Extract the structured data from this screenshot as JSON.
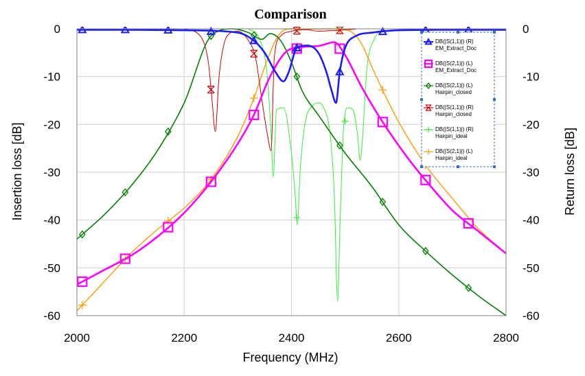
{
  "chart_data": {
    "type": "line",
    "title": "Comparison",
    "xlabel": "Frequency (MHz)",
    "ylabel_left": "Insertion loss [dB]",
    "ylabel_right": "Return loss [dB]",
    "xlim": [
      2000,
      2800
    ],
    "ylim_left": [
      -60,
      0
    ],
    "ylim_right": [
      -60,
      0
    ],
    "x_ticks": [
      "2000",
      "2200",
      "2400",
      "2600",
      "2800"
    ],
    "y_ticks_left": [
      "0",
      "-10",
      "-20",
      "-30",
      "-40",
      "-50",
      "-60"
    ],
    "y_ticks_right": [
      "0",
      "-10",
      "-20",
      "-30",
      "-40",
      "-50",
      "-60"
    ],
    "grid": true,
    "legend_position": "top-right",
    "series": [
      {
        "key": "s11_em",
        "name": "DB(|S(1,1)|) (R)",
        "name2": "EM_Extract_Doc",
        "color": "#1a1aff",
        "marker": "triangle",
        "axis": "right",
        "x": [
          2000,
          2100,
          2200,
          2300,
          2330,
          2350,
          2370,
          2385,
          2395,
          2410,
          2430,
          2450,
          2465,
          2475,
          2483,
          2490,
          2500,
          2520,
          2550,
          2600,
          2700,
          2800
        ],
        "y": [
          -0.2,
          -0.2,
          -0.3,
          -0.8,
          -2.5,
          -5,
          -9,
          -11,
          -9,
          -4,
          -3.5,
          -5,
          -9,
          -13,
          -15.5,
          -9,
          -4,
          -1.5,
          -0.8,
          -0.3,
          -0.2,
          -0.2
        ]
      },
      {
        "key": "s21_em",
        "name": "DB(|S(2,1)|) (L)",
        "name2": "EM_Extract_Doc",
        "color": "#ff00ff",
        "marker": "square",
        "axis": "left",
        "x": [
          2000,
          2050,
          2100,
          2150,
          2200,
          2250,
          2300,
          2330,
          2360,
          2390,
          2420,
          2450,
          2480,
          2500,
          2530,
          2570,
          2620,
          2660,
          2700,
          2750,
          2800
        ],
        "y": [
          -53.5,
          -50.5,
          -47.5,
          -43.5,
          -38.5,
          -32,
          -24,
          -18,
          -10,
          -4.8,
          -3.8,
          -3.6,
          -2.8,
          -5.5,
          -12,
          -19.5,
          -27.5,
          -33,
          -38,
          -42.5,
          -47
        ]
      },
      {
        "key": "s21_hc",
        "name": "DB(|S(2,1)|) (L)",
        "name2": "Hairpin_closed",
        "color": "#008000",
        "marker": "diamond",
        "axis": "left",
        "x": [
          2000,
          2050,
          2100,
          2150,
          2200,
          2250,
          2290,
          2320,
          2345,
          2360,
          2380,
          2400,
          2420,
          2450,
          2500,
          2550,
          2600,
          2650,
          2700,
          2750,
          2800
        ],
        "y": [
          -44,
          -39,
          -33,
          -25.5,
          -15.5,
          -1.5,
          0,
          -0.8,
          -2.2,
          -1,
          -2.5,
          -7,
          -13,
          -18,
          -26,
          -33,
          -41,
          -46.5,
          -51.5,
          -56,
          -60
        ]
      },
      {
        "key": "s11_hc",
        "name": "DB(|S(1,1)|) (R)",
        "name2": "Hairpin_closed",
        "color": "#cc0000",
        "marker": "x",
        "axis": "right",
        "x": [
          2200,
          2230,
          2245,
          2252,
          2258,
          2265,
          2280,
          2300,
          2320,
          2333,
          2345,
          2355,
          2362,
          2368,
          2380,
          2400,
          2430,
          2450,
          2470,
          2490,
          2520
        ],
        "y": [
          -0.05,
          -1.5,
          -7,
          -15,
          -21.5,
          -10,
          -1.5,
          -0.5,
          -2.5,
          -6,
          -15,
          -22,
          -25.5,
          -6,
          -1.5,
          -0.5,
          -0.2,
          -0.5,
          -0.4,
          -0.3,
          -0.05
        ]
      },
      {
        "key": "s11_hi",
        "name": "DB(|S(1,1)|) (R)",
        "name2": "Hairpin_ideal",
        "color": "#33ee33",
        "marker": "plus",
        "axis": "right",
        "x": [
          2320,
          2340,
          2355,
          2362,
          2366,
          2372,
          2385,
          2400,
          2407,
          2411,
          2416,
          2425,
          2440,
          2450,
          2460,
          2472,
          2480,
          2486,
          2491,
          2497,
          2505,
          2515,
          2523,
          2528,
          2533,
          2540,
          2555,
          2570
        ],
        "y": [
          -0.05,
          -2,
          -10,
          -22,
          -31,
          -17,
          -16.5,
          -26,
          -35,
          -41,
          -30,
          -20,
          -16,
          -15.5,
          -16.5,
          -22,
          -35,
          -57,
          -39,
          -21,
          -16.5,
          -17,
          -22,
          -27.5,
          -22,
          -9,
          -2,
          -0.05
        ]
      },
      {
        "key": "s21_hi",
        "name": "DB(|S(2,1)|) (L)",
        "name2": "Hairpin_ideal",
        "color": "#ff9900",
        "marker": "plus",
        "axis": "left",
        "x": [
          2000,
          2050,
          2100,
          2150,
          2200,
          2250,
          2300,
          2330,
          2350,
          2370,
          2385,
          2400,
          2430,
          2460,
          2490,
          2510,
          2530,
          2550,
          2575,
          2600,
          2650,
          2700,
          2750,
          2800
        ],
        "y": [
          -59,
          -53,
          -47,
          -42,
          -37.5,
          -31.5,
          -22.5,
          -14.5,
          -8,
          -2.5,
          -0.3,
          0,
          -0.1,
          0,
          -0.1,
          -0.5,
          -3,
          -8,
          -14,
          -19.5,
          -28.5,
          -35.5,
          -42,
          -47
        ]
      }
    ]
  }
}
